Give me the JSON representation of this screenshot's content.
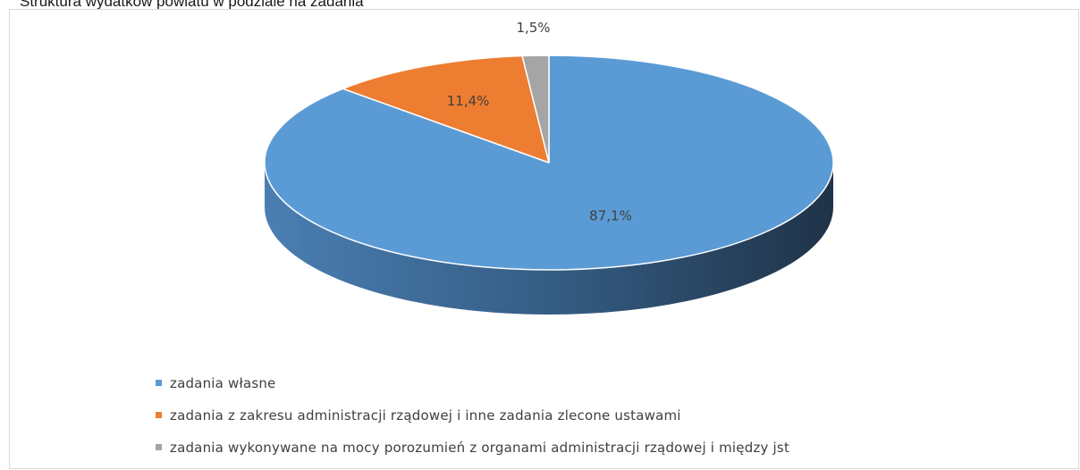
{
  "title": "Struktura wydatków powiatu w podziale na zadania",
  "chart_data": {
    "type": "pie",
    "title": "Struktura wydatków powiatu w podziale na zadania",
    "categories": [
      "zadania własne",
      "zadania z zakresu administracji rządowej i inne zadania zlecone ustawami",
      "zadania wykonywane na mocy porozumień z organami administracji rządowej i między jst"
    ],
    "values": [
      87.1,
      11.4,
      1.5
    ],
    "data_labels": [
      "87,1%",
      "11,4%",
      "1,5%"
    ],
    "colors": [
      "#5b9bd5",
      "#ed7d31",
      "#a5a5a5"
    ],
    "style": "3d",
    "legend_position": "bottom-left"
  }
}
